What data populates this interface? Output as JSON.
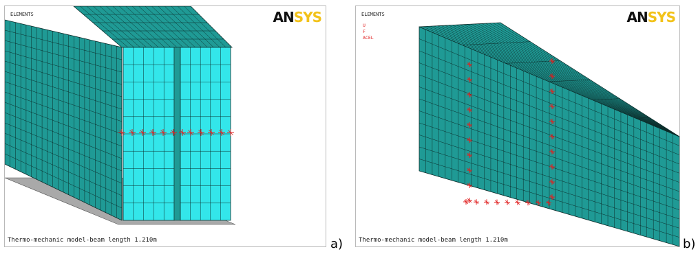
{
  "panel_a": {
    "logo_an": "AN",
    "logo_sys": "SYS",
    "elements_label": "ELEMENTS",
    "caption": "Thermo-mechanic model-beam length 1.210m",
    "tag": "a)"
  },
  "panel_b": {
    "logo_an": "AN",
    "logo_sys": "SYS",
    "elements_label": "ELEMENTS",
    "legend": [
      "U",
      "F",
      "ACEL"
    ],
    "caption": "Thermo-mechanic model-beam length 1.210m",
    "tag": "b)"
  },
  "colors": {
    "mesh": "#1f9a95",
    "mesh_light": "#33e6ea",
    "mesh_line": "#0c2c2a",
    "constraint": "#e02020",
    "base": "#a9a9a9"
  }
}
